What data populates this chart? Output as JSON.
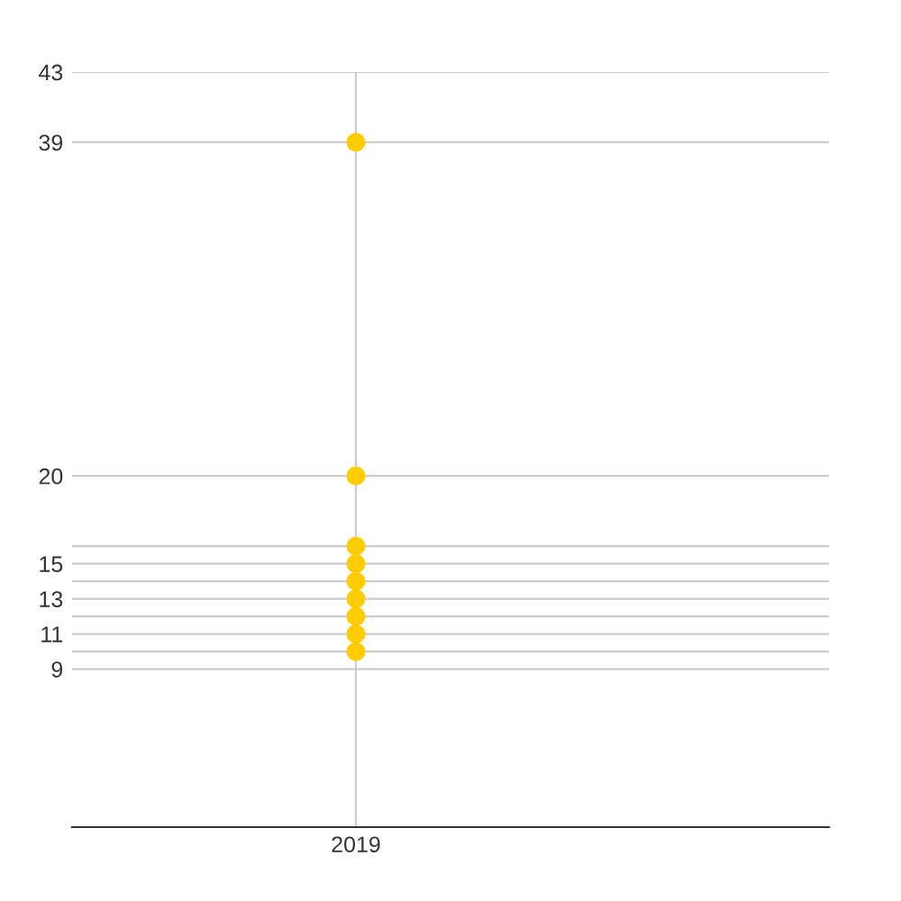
{
  "chart_data": {
    "type": "scatter",
    "categories": [
      null,
      "2019",
      null,
      null
    ],
    "series": [
      {
        "color": "#ffcc00",
        "values": [
          null,
          39,
          null,
          null
        ]
      },
      {
        "color": "#ffcc00",
        "values": [
          null,
          20,
          null,
          null
        ]
      },
      {
        "color": "#ffcc00",
        "values": [
          null,
          16,
          null,
          null
        ]
      },
      {
        "color": "#ffcc00",
        "values": [
          null,
          15,
          null,
          null
        ]
      },
      {
        "color": "#ffcc00",
        "values": [
          null,
          14,
          null,
          null
        ]
      },
      {
        "color": "#ffcc00",
        "values": [
          null,
          13,
          null,
          null
        ]
      },
      {
        "color": "#ffcc00",
        "values": [
          null,
          12,
          null,
          null
        ]
      },
      {
        "color": "#ffcc00",
        "values": [
          null,
          11,
          null,
          null
        ]
      },
      {
        "color": "#ffcc00",
        "values": [
          null,
          10,
          null,
          null
        ]
      }
    ],
    "marker": "circle",
    "ylim": [
      0,
      43
    ],
    "yticks": [
      9,
      {
        "value": 10,
        "label": null
      },
      11,
      {
        "value": 12,
        "label": null
      },
      13,
      {
        "value": 14,
        "label": null
      },
      15,
      {
        "value": 16,
        "label": null
      },
      20,
      39,
      43
    ],
    "grid": true
  }
}
